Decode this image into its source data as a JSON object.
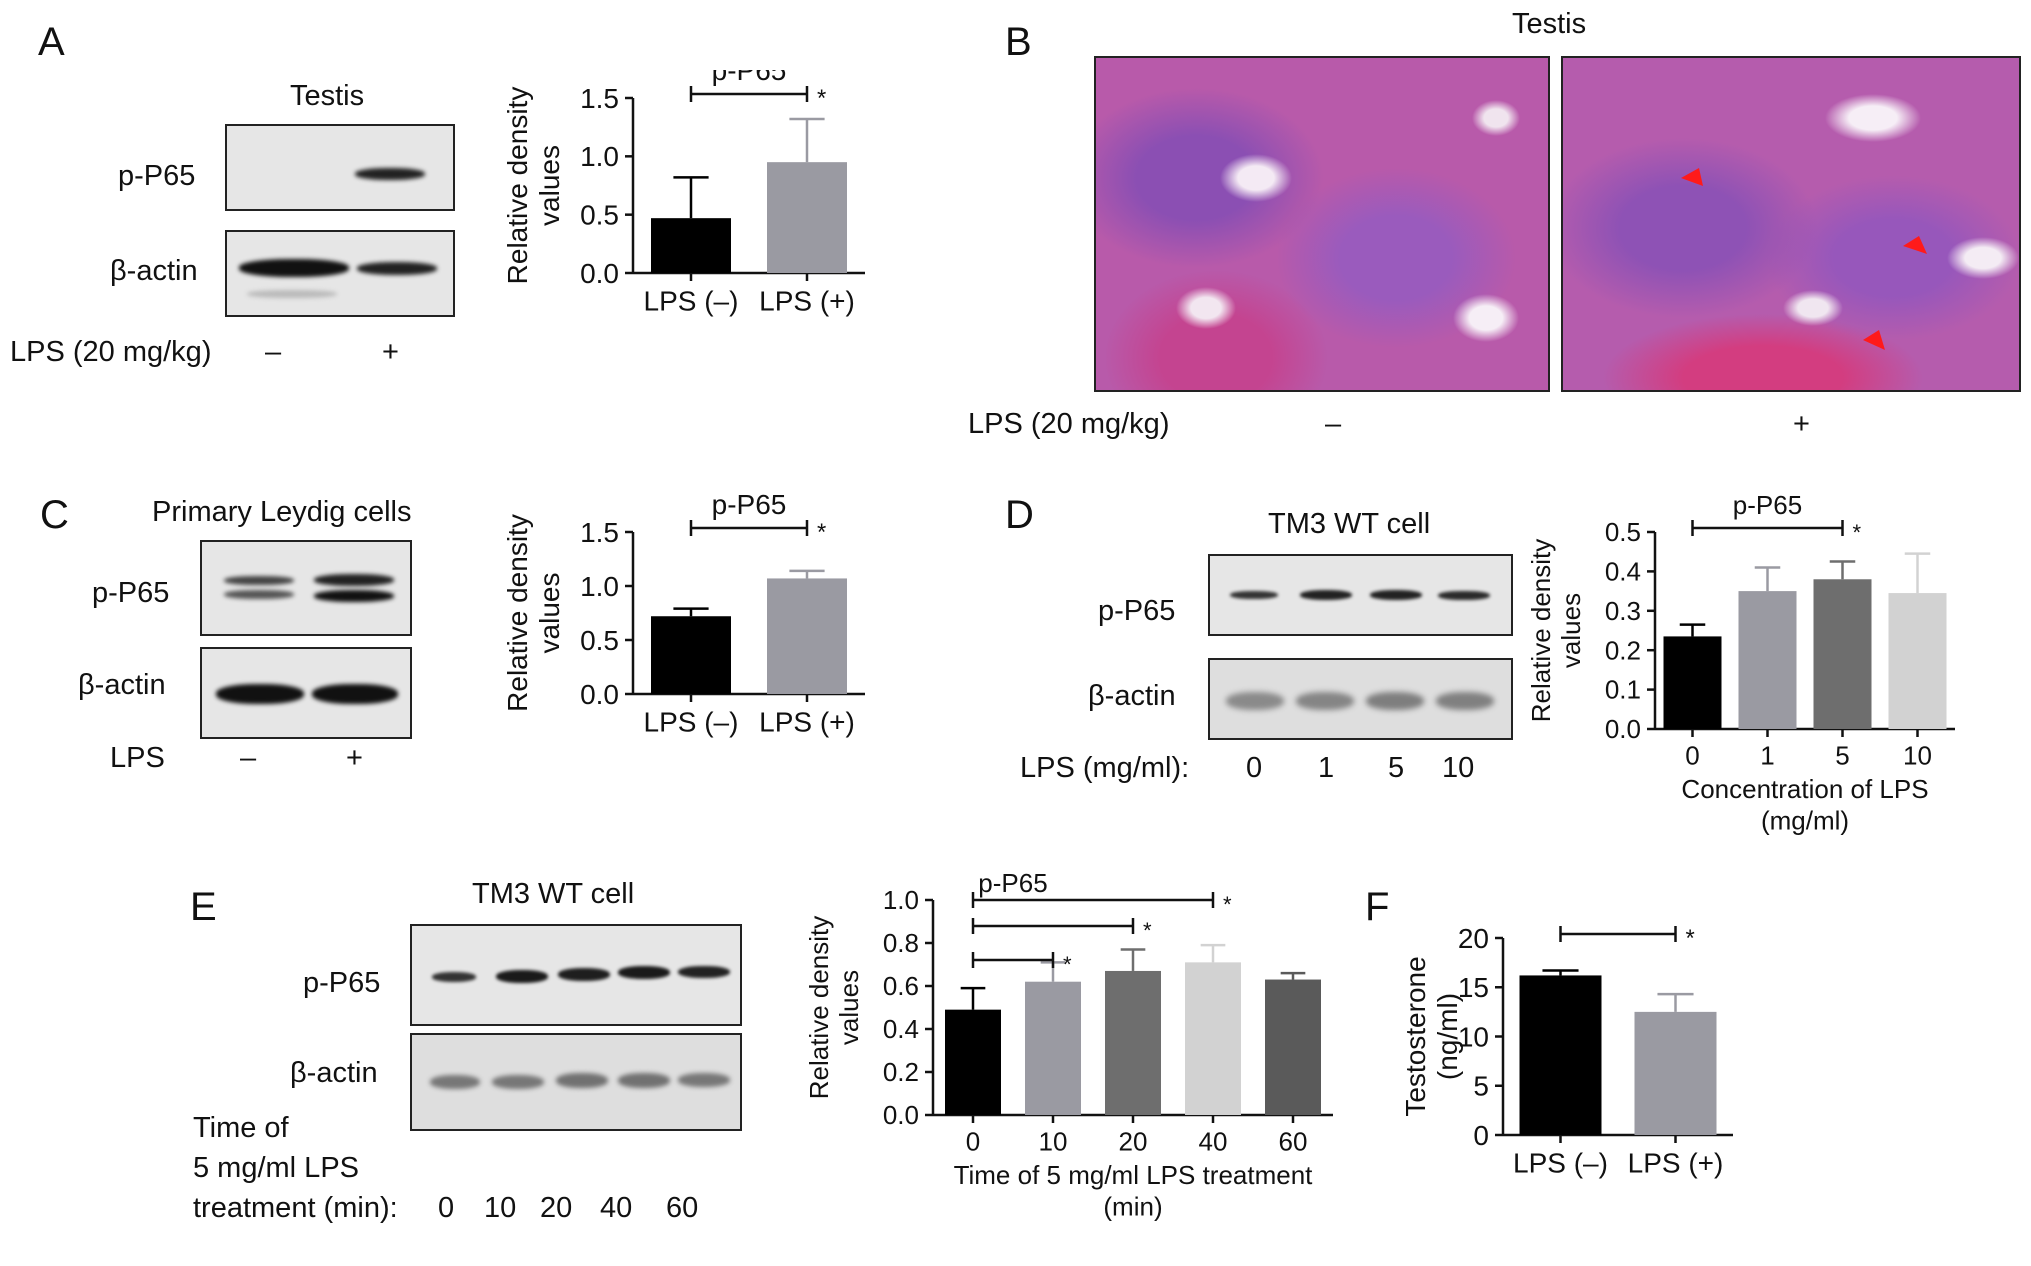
{
  "panels": {
    "A": {
      "letter": "A",
      "blot_title": "Testis",
      "rows": [
        "p-P65",
        "β-actin"
      ],
      "treatment_label": "LPS (20 mg/kg)",
      "lanes": [
        "–",
        "+"
      ]
    },
    "B": {
      "letter": "B",
      "title": "Testis",
      "treatment_label": "LPS (20 mg/kg)",
      "lanes": [
        "–",
        "+"
      ]
    },
    "C": {
      "letter": "C",
      "blot_title": "Primary Leydig cells",
      "rows": [
        "p-P65",
        "β-actin"
      ],
      "treatment_label": "LPS",
      "lanes": [
        "–",
        "+"
      ]
    },
    "D": {
      "letter": "D",
      "blot_title": "TM3 WT cell",
      "rows": [
        "p-P65",
        "β-actin"
      ],
      "treatment_label": "LPS (mg/ml):",
      "lanes": [
        "0",
        "1",
        "5",
        "10"
      ]
    },
    "E": {
      "letter": "E",
      "blot_title": "TM3 WT cell",
      "rows": [
        "p-P65",
        "β-actin"
      ],
      "treatment_lines": [
        "Time of",
        "5 mg/ml LPS",
        "treatment (min):"
      ],
      "lanes": [
        "0",
        "10",
        "20",
        "40",
        "60"
      ]
    },
    "F": {
      "letter": "F"
    }
  },
  "chart_data": [
    {
      "id": "A",
      "type": "bar",
      "title": "p-P65",
      "ylabel": [
        "Relative density",
        "values"
      ],
      "xlabel": [],
      "categories": [
        "LPS (–)",
        "LPS (+)"
      ],
      "values": [
        0.47,
        0.95
      ],
      "errors": [
        0.35,
        0.37
      ],
      "colors": [
        "#000000",
        "#9a9aa2"
      ],
      "ylim": [
        0,
        1.5
      ],
      "yticks": [
        "0.0",
        "0.5",
        "1.0",
        "1.5"
      ],
      "significance": [
        {
          "from": 0,
          "to": 1,
          "label": "*"
        }
      ]
    },
    {
      "id": "C",
      "type": "bar",
      "title": "p-P65",
      "ylabel": [
        "Relative density",
        "values"
      ],
      "xlabel": [],
      "categories": [
        "LPS (–)",
        "LPS (+)"
      ],
      "values": [
        0.72,
        1.07
      ],
      "errors": [
        0.07,
        0.07
      ],
      "colors": [
        "#000000",
        "#9a9aa2"
      ],
      "ylim": [
        0,
        1.5
      ],
      "yticks": [
        "0.0",
        "0.5",
        "1.0",
        "1.5"
      ],
      "significance": [
        {
          "from": 0,
          "to": 1,
          "label": "*"
        }
      ]
    },
    {
      "id": "D",
      "type": "bar",
      "title": "p-P65",
      "ylabel": [
        "Relative density",
        "values"
      ],
      "xlabel": [
        "Concentration of LPS",
        "(mg/ml)"
      ],
      "categories": [
        "0",
        "1",
        "5",
        "10"
      ],
      "values": [
        0.235,
        0.35,
        0.38,
        0.345
      ],
      "errors": [
        0.03,
        0.06,
        0.045,
        0.1
      ],
      "colors": [
        "#000000",
        "#9a9aa2",
        "#6e6e6e",
        "#d2d2d2"
      ],
      "ylim": [
        0,
        0.5
      ],
      "yticks": [
        "0.0",
        "0.1",
        "0.2",
        "0.3",
        "0.4",
        "0.5"
      ],
      "significance": [
        {
          "from": 0,
          "to": 2,
          "label": "*"
        }
      ]
    },
    {
      "id": "E",
      "type": "bar",
      "title": "p-P65",
      "ylabel": [
        "Relative density",
        "values"
      ],
      "xlabel": [
        "Time of 5 mg/ml LPS treatment",
        "(min)"
      ],
      "categories": [
        "0",
        "10",
        "20",
        "40",
        "60"
      ],
      "values": [
        0.49,
        0.62,
        0.67,
        0.71,
        0.63
      ],
      "errors": [
        0.1,
        0.09,
        0.1,
        0.08,
        0.03
      ],
      "colors": [
        "#000000",
        "#9a9aa2",
        "#6e6e6e",
        "#d2d2d2",
        "#5a5a5a"
      ],
      "ylim": [
        0,
        1.0
      ],
      "yticks": [
        "0.0",
        "0.2",
        "0.4",
        "0.6",
        "0.8",
        "1.0"
      ],
      "significance": [
        {
          "from": 0,
          "to": 1,
          "label": "*"
        },
        {
          "from": 0,
          "to": 2,
          "label": "*"
        },
        {
          "from": 0,
          "to": 3,
          "label": "*"
        }
      ]
    },
    {
      "id": "F",
      "type": "bar",
      "title": "",
      "ylabel": [
        "Testosterone",
        "(ng/ml)"
      ],
      "xlabel": [],
      "categories": [
        "LPS (–)",
        "LPS (+)"
      ],
      "values": [
        16.2,
        12.5
      ],
      "errors": [
        0.5,
        1.8
      ],
      "colors": [
        "#000000",
        "#9a9aa2"
      ],
      "ylim": [
        0,
        20
      ],
      "yticks": [
        "0",
        "5",
        "10",
        "15",
        "20"
      ],
      "significance": [
        {
          "from": 0,
          "to": 1,
          "label": "*"
        }
      ]
    }
  ]
}
